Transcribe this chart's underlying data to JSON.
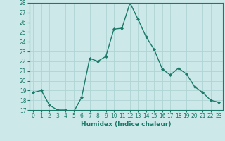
{
  "x": [
    0,
    1,
    2,
    3,
    4,
    5,
    6,
    7,
    8,
    9,
    10,
    11,
    12,
    13,
    14,
    15,
    16,
    17,
    18,
    19,
    20,
    21,
    22,
    23
  ],
  "y": [
    18.8,
    19.0,
    17.5,
    17.0,
    17.0,
    16.8,
    18.3,
    22.3,
    22.0,
    22.5,
    25.3,
    25.4,
    28.0,
    26.3,
    24.5,
    23.2,
    21.2,
    20.6,
    21.3,
    20.7,
    19.4,
    18.8,
    18.0,
    17.8
  ],
  "line_color": "#1a7a6a",
  "marker": "D",
  "markersize": 2.0,
  "linewidth": 1.0,
  "xlabel": "Humidex (Indice chaleur)",
  "ylim": [
    17,
    28
  ],
  "xlim": [
    -0.5,
    23.5
  ],
  "yticks": [
    17,
    18,
    19,
    20,
    21,
    22,
    23,
    24,
    25,
    26,
    27,
    28
  ],
  "xticks": [
    0,
    1,
    2,
    3,
    4,
    5,
    6,
    7,
    8,
    9,
    10,
    11,
    12,
    13,
    14,
    15,
    16,
    17,
    18,
    19,
    20,
    21,
    22,
    23
  ],
  "bg_color": "#cce8e8",
  "grid_color": "#afd4d4",
  "tick_fontsize": 5.5,
  "xlabel_fontsize": 6.5
}
